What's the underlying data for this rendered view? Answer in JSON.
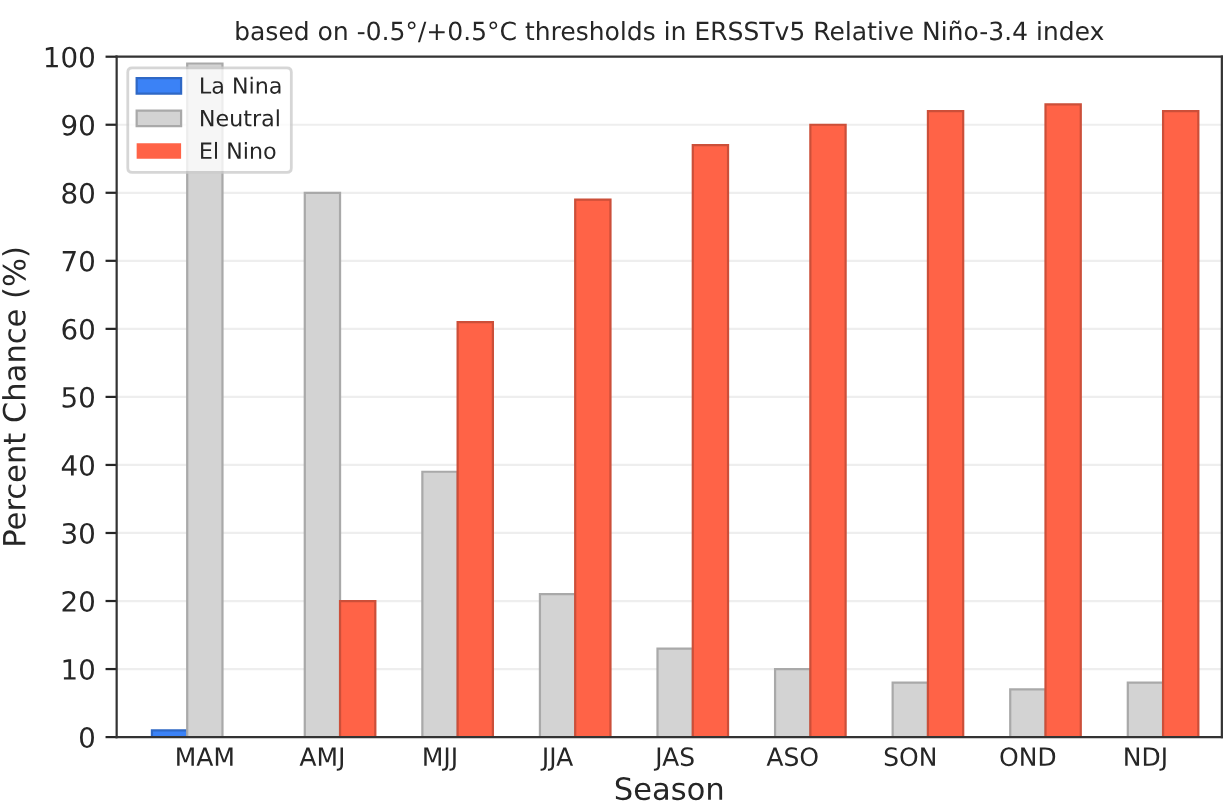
{
  "chart_data": {
    "type": "bar",
    "title": "based on -0.5°/+0.5°C thresholds in ERSSTv5 Relative Niño-3.4 index",
    "xlabel": "Season",
    "ylabel": "Percent Chance (%)",
    "categories": [
      "MAM",
      "AMJ",
      "MJJ",
      "JJA",
      "JAS",
      "ASO",
      "SON",
      "OND",
      "NDJ"
    ],
    "series": [
      {
        "name": "La Nina",
        "color": "#3b82f6",
        "values": [
          1,
          0,
          0,
          0,
          0,
          0,
          0,
          0,
          0
        ]
      },
      {
        "name": "Neutral",
        "color": "#d3d3d3",
        "values": [
          99,
          80,
          39,
          21,
          13,
          10,
          8,
          7,
          8
        ]
      },
      {
        "name": "El Nino",
        "color": "#ff6347",
        "values": [
          0,
          20,
          61,
          79,
          87,
          90,
          92,
          93,
          92
        ]
      }
    ],
    "ylim": [
      0,
      100
    ],
    "yticks": [
      0,
      10,
      20,
      30,
      40,
      50,
      60,
      70,
      80,
      90,
      100
    ],
    "grid": "y",
    "legend": "top left"
  }
}
